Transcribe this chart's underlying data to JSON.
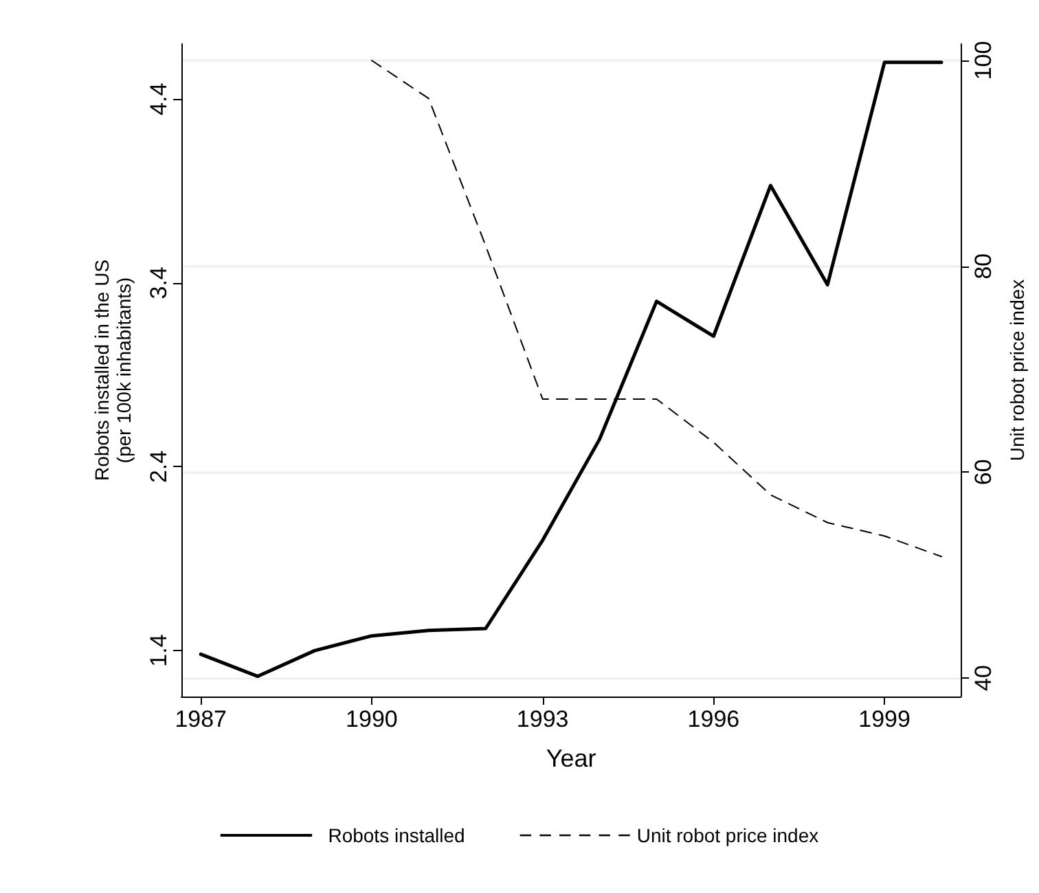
{
  "chart_data": {
    "type": "line",
    "xlabel": "Year",
    "ylabel": "Robots installed in the US\n(per 100k inhabitants)",
    "y2label": "Unit robot price index",
    "x": [
      1987,
      1988,
      1989,
      1990,
      1991,
      1992,
      1993,
      1994,
      1995,
      1996,
      1997,
      1998,
      1999,
      2000
    ],
    "series": [
      {
        "name": "Robots installed",
        "color": "#000000",
        "line_style": "solid",
        "values": [
          1.38,
          1.26,
          1.4,
          1.48,
          1.51,
          1.52,
          2.0,
          2.55,
          3.3,
          3.11,
          3.93,
          3.39,
          4.6,
          4.6
        ]
      },
      {
        "name": "Unit robot price index",
        "color": "#000000",
        "line_style": "dashed",
        "axis": "y2",
        "values": [
          null,
          null,
          null,
          100,
          96.3,
          82,
          67.1,
          67.1,
          67.1,
          62.9,
          57.8,
          55.1,
          53.8,
          51.8
        ]
      }
    ],
    "xlim": [
      1986.66,
      2000.34
    ],
    "xticks": [
      1987,
      1990,
      1993,
      1996,
      1999
    ],
    "ylim": [
      1.15,
      4.7
    ],
    "yticks": [
      1.4,
      2.4,
      3.4,
      4.4
    ],
    "y2lim": [
      38.2,
      101.6
    ],
    "y2ticks": [
      40,
      60,
      80,
      100
    ],
    "grid": "y",
    "legend": "bottom",
    "marker": "none"
  }
}
